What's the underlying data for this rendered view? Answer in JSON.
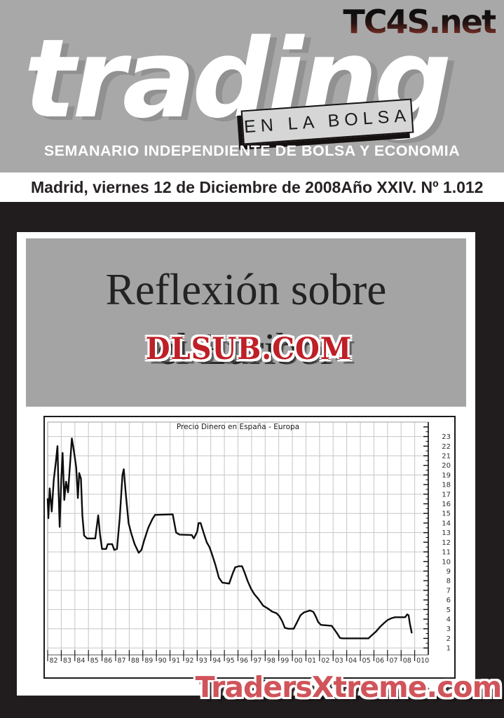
{
  "masthead": {
    "site_logo": "TC4S.net",
    "title": "trading",
    "subtitle_box": "EN LA BOLSA",
    "tagline": "SEMANARIO INDEPENDIENTE DE BOLSA Y ECONOMIA"
  },
  "date_bar": {
    "date": "Madrid, viernes 12 de Diciembre de 2008",
    "issue": "Año XXIV. Nº 1.012"
  },
  "headline": {
    "line1": "Reflexión sobre",
    "line2": "el Euribor"
  },
  "watermark": {
    "text": "DLSUB.COM"
  },
  "footer": {
    "text": "TradersXtreme.com"
  },
  "colors": {
    "header_gray": "#a8a8a8",
    "headline_box_gray": "#a4a4a4",
    "page_black": "#211d1e",
    "watermark_red": "#bf1f27",
    "footer_red": "#d0545a",
    "logo_gradient_red": "#96453a",
    "grid_gray": "#c6c6c6",
    "line_black": "#0d0d0d"
  },
  "chart_data": {
    "type": "line",
    "title": "Precio Dinero en España - Europa",
    "xlabel": "",
    "ylabel": "",
    "x_range": [
      1982,
      2010
    ],
    "y_range": [
      0.5,
      24.5
    ],
    "grid": true,
    "grid_y_start": 1,
    "grid_y_step": 2,
    "legend_position": "none",
    "x_tick_labels": [
      "82",
      "83",
      "84",
      "85",
      "86",
      "87",
      "88",
      "89",
      "90",
      "91",
      "92",
      "93",
      "94",
      "95",
      "96",
      "97",
      "98",
      "99",
      "00",
      "01",
      "02",
      "03",
      "04",
      "05",
      "06",
      "07",
      "08",
      "010"
    ],
    "y_ticks": [
      1,
      2,
      3,
      4,
      5,
      6,
      7,
      8,
      9,
      10,
      11,
      12,
      13,
      14,
      15,
      16,
      17,
      18,
      19,
      20,
      21,
      22,
      23
    ],
    "series": [
      {
        "name": "Precio Dinero en España - Europa",
        "points": [
          [
            1982.0,
            16.5
          ],
          [
            1982.05,
            14.5
          ],
          [
            1982.15,
            17.6
          ],
          [
            1982.3,
            15.2
          ],
          [
            1982.45,
            18.5
          ],
          [
            1982.6,
            20.3
          ],
          [
            1982.72,
            22.0
          ],
          [
            1982.8,
            17.5
          ],
          [
            1982.88,
            13.6
          ],
          [
            1983.0,
            18.5
          ],
          [
            1983.1,
            21.3
          ],
          [
            1983.22,
            16.4
          ],
          [
            1983.35,
            18.3
          ],
          [
            1983.5,
            17.2
          ],
          [
            1983.65,
            20.2
          ],
          [
            1983.78,
            22.8
          ],
          [
            1983.9,
            21.8
          ],
          [
            1984.0,
            20.8
          ],
          [
            1984.1,
            19.8
          ],
          [
            1984.22,
            16.6
          ],
          [
            1984.32,
            19.2
          ],
          [
            1984.45,
            18.6
          ],
          [
            1984.55,
            14.8
          ],
          [
            1984.68,
            12.7
          ],
          [
            1984.9,
            12.4
          ],
          [
            1985.5,
            12.4
          ],
          [
            1985.72,
            14.8
          ],
          [
            1985.85,
            12.8
          ],
          [
            1986.0,
            11.3
          ],
          [
            1986.3,
            11.3
          ],
          [
            1986.42,
            11.8
          ],
          [
            1986.75,
            11.8
          ],
          [
            1986.9,
            11.2
          ],
          [
            1987.1,
            11.3
          ],
          [
            1987.3,
            14.5
          ],
          [
            1987.5,
            19.0
          ],
          [
            1987.6,
            19.6
          ],
          [
            1987.75,
            17.0
          ],
          [
            1987.95,
            14.0
          ],
          [
            1988.15,
            12.9
          ],
          [
            1988.4,
            11.8
          ],
          [
            1988.7,
            10.9
          ],
          [
            1988.9,
            11.2
          ],
          [
            1989.1,
            12.2
          ],
          [
            1989.4,
            13.5
          ],
          [
            1989.7,
            14.4
          ],
          [
            1989.9,
            14.85
          ],
          [
            1991.2,
            14.9
          ],
          [
            1991.45,
            13.0
          ],
          [
            1991.7,
            12.8
          ],
          [
            1992.6,
            12.75
          ],
          [
            1992.75,
            12.4
          ],
          [
            1993.0,
            13.1
          ],
          [
            1993.1,
            14.0
          ],
          [
            1993.25,
            14.0
          ],
          [
            1993.45,
            13.1
          ],
          [
            1993.7,
            12.0
          ],
          [
            1993.9,
            11.5
          ],
          [
            1994.1,
            10.7
          ],
          [
            1994.35,
            9.6
          ],
          [
            1994.6,
            8.3
          ],
          [
            1994.85,
            7.8
          ],
          [
            1995.35,
            7.7
          ],
          [
            1995.6,
            8.7
          ],
          [
            1995.8,
            9.4
          ],
          [
            1996.05,
            9.5
          ],
          [
            1996.3,
            9.5
          ],
          [
            1996.5,
            8.8
          ],
          [
            1996.7,
            8.0
          ],
          [
            1996.95,
            7.2
          ],
          [
            1997.2,
            6.6
          ],
          [
            1997.5,
            6.1
          ],
          [
            1997.85,
            5.4
          ],
          [
            1998.2,
            5.1
          ],
          [
            1998.5,
            4.8
          ],
          [
            1998.85,
            4.6
          ],
          [
            1999.05,
            4.3
          ],
          [
            1999.25,
            3.8
          ],
          [
            1999.45,
            3.1
          ],
          [
            1999.7,
            3.0
          ],
          [
            2000.1,
            3.0
          ],
          [
            2000.35,
            3.7
          ],
          [
            2000.6,
            4.4
          ],
          [
            2000.85,
            4.7
          ],
          [
            2001.3,
            4.9
          ],
          [
            2001.55,
            4.75
          ],
          [
            2001.75,
            4.2
          ],
          [
            2001.9,
            3.7
          ],
          [
            2002.1,
            3.4
          ],
          [
            2002.9,
            3.3
          ],
          [
            2003.1,
            2.9
          ],
          [
            2003.3,
            2.5
          ],
          [
            2003.5,
            2.05
          ],
          [
            2003.7,
            2.0
          ],
          [
            2005.6,
            2.0
          ],
          [
            2005.9,
            2.4
          ],
          [
            2006.15,
            2.7
          ],
          [
            2006.45,
            3.2
          ],
          [
            2006.75,
            3.6
          ],
          [
            2007.0,
            3.9
          ],
          [
            2007.3,
            4.1
          ],
          [
            2007.55,
            4.2
          ],
          [
            2008.3,
            4.2
          ],
          [
            2008.45,
            4.5
          ],
          [
            2008.55,
            4.4
          ],
          [
            2008.65,
            3.5
          ],
          [
            2008.78,
            2.6
          ]
        ]
      }
    ]
  }
}
